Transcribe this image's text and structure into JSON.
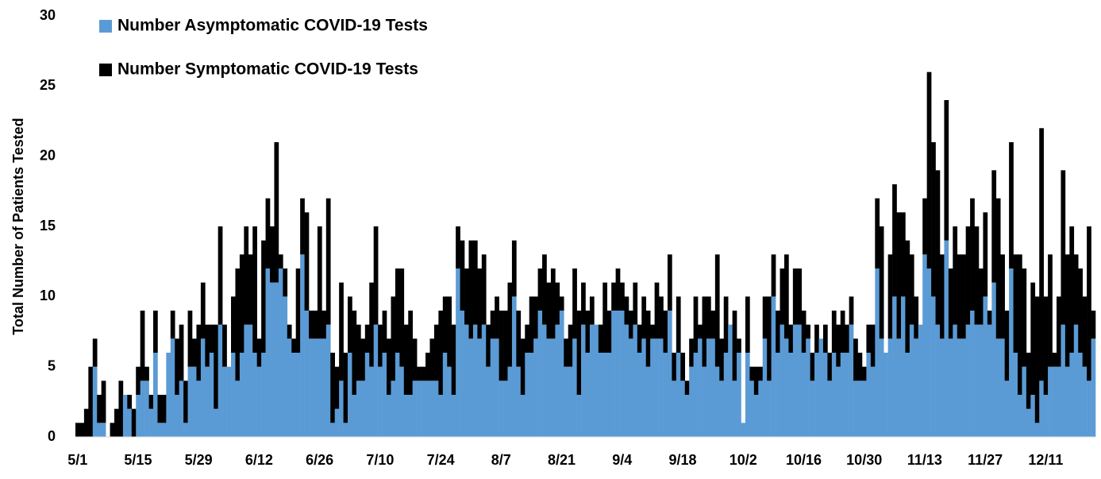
{
  "chart_data": {
    "type": "bar",
    "stacked": true,
    "y_label": "Total Number of Patients Tested",
    "categories": [
      "5/1",
      null,
      null,
      null,
      null,
      null,
      null,
      null,
      null,
      null,
      null,
      null,
      null,
      null,
      "5/15",
      null,
      null,
      null,
      null,
      null,
      null,
      null,
      null,
      null,
      null,
      null,
      null,
      null,
      "5/29",
      null,
      null,
      null,
      null,
      null,
      null,
      null,
      null,
      null,
      null,
      null,
      null,
      null,
      "6/12",
      null,
      null,
      null,
      null,
      null,
      null,
      null,
      null,
      null,
      null,
      null,
      null,
      null,
      "6/26",
      null,
      null,
      null,
      null,
      null,
      null,
      null,
      null,
      null,
      null,
      null,
      null,
      null,
      "7/10",
      null,
      null,
      null,
      null,
      null,
      null,
      null,
      null,
      null,
      null,
      null,
      null,
      null,
      "7/24",
      null,
      null,
      null,
      null,
      null,
      null,
      null,
      null,
      null,
      null,
      null,
      null,
      null,
      "8/7",
      null,
      null,
      null,
      null,
      null,
      null,
      null,
      null,
      null,
      null,
      null,
      null,
      null,
      "8/21",
      null,
      null,
      null,
      null,
      null,
      null,
      null,
      null,
      null,
      null,
      null,
      null,
      null,
      "9/4",
      null,
      null,
      null,
      null,
      null,
      null,
      null,
      null,
      null,
      null,
      null,
      null,
      null,
      "9/18",
      null,
      null,
      null,
      null,
      null,
      null,
      null,
      null,
      null,
      null,
      null,
      null,
      null,
      "10/2",
      null,
      null,
      null,
      null,
      null,
      null,
      null,
      null,
      null,
      null,
      null,
      null,
      null,
      "10/16",
      null,
      null,
      null,
      null,
      null,
      null,
      null,
      null,
      null,
      null,
      null,
      null,
      null,
      "10/30",
      null,
      null,
      null,
      null,
      null,
      null,
      null,
      null,
      null,
      null,
      null,
      null,
      null,
      "11/13",
      null,
      null,
      null,
      null,
      null,
      null,
      null,
      null,
      null,
      null,
      null,
      null,
      null,
      "11/27",
      null,
      null,
      null,
      null,
      null,
      null,
      null,
      null,
      null,
      null,
      null,
      null,
      null,
      "12/11",
      null,
      null,
      null,
      null,
      null,
      null,
      null,
      null,
      null,
      null,
      null
    ],
    "series": [
      {
        "name": "Number Asymptomatic COVID-19 Tests",
        "color": "#5b9bd5",
        "values": [
          0,
          0,
          0,
          0,
          5,
          1,
          1,
          0,
          0,
          0,
          0,
          3,
          2,
          0,
          3,
          4,
          4,
          2,
          6,
          1,
          1,
          6,
          7,
          3,
          4,
          1,
          5,
          5,
          4,
          7,
          5,
          6,
          2,
          8,
          5,
          5,
          6,
          4,
          6,
          8,
          8,
          6,
          5,
          6,
          12,
          11,
          11,
          12,
          10,
          7,
          6,
          6,
          13,
          9,
          7,
          7,
          7,
          7,
          8,
          1,
          2,
          4,
          1,
          6,
          3,
          4,
          4,
          6,
          5,
          8,
          5,
          6,
          3,
          4,
          6,
          5,
          3,
          3,
          4,
          4,
          4,
          4,
          4,
          4,
          3,
          6,
          5,
          3,
          12,
          9,
          8,
          7,
          8,
          7,
          8,
          5,
          7,
          7,
          4,
          4,
          5,
          10,
          5,
          3,
          6,
          6,
          7,
          9,
          8,
          7,
          7,
          8,
          9,
          5,
          5,
          7,
          3,
          8,
          6,
          8,
          8,
          6,
          6,
          6,
          9,
          9,
          9,
          8,
          7,
          8,
          6,
          7,
          5,
          7,
          7,
          7,
          6,
          9,
          4,
          6,
          4,
          3,
          5,
          6,
          7,
          5,
          7,
          7,
          5,
          4,
          6,
          8,
          4,
          6,
          1,
          6,
          4,
          3,
          4,
          7,
          4,
          10,
          6,
          8,
          7,
          6,
          8,
          8,
          6,
          7,
          4,
          6,
          7,
          6,
          4,
          6,
          5,
          6,
          6,
          8,
          4,
          4,
          4,
          6,
          5,
          12,
          7,
          6,
          7,
          10,
          7,
          10,
          6,
          8,
          7,
          8,
          13,
          12,
          10,
          8,
          7,
          14,
          7,
          8,
          7,
          7,
          8,
          9,
          8,
          8,
          10,
          8,
          11,
          7,
          7,
          4,
          12,
          6,
          3,
          5,
          2,
          3,
          1,
          4,
          3,
          5,
          5,
          5,
          8,
          5,
          6,
          8,
          6,
          5,
          4,
          7
        ]
      },
      {
        "name": "Number Symptomatic COVID-19 Tests",
        "color": "#000000",
        "values": [
          1,
          1,
          2,
          5,
          2,
          2,
          3,
          0,
          1,
          2,
          4,
          0,
          1,
          2,
          2,
          5,
          1,
          1,
          3,
          2,
          2,
          0,
          2,
          4,
          4,
          3,
          4,
          2,
          4,
          4,
          3,
          2,
          6,
          7,
          3,
          0,
          4,
          8,
          7,
          7,
          5,
          9,
          2,
          8,
          5,
          4,
          10,
          1,
          2,
          1,
          1,
          6,
          4,
          7,
          2,
          2,
          8,
          2,
          9,
          5,
          3,
          7,
          5,
          4,
          6,
          4,
          3,
          2,
          6,
          7,
          3,
          3,
          4,
          6,
          6,
          7,
          5,
          6,
          3,
          1,
          1,
          2,
          3,
          4,
          6,
          4,
          5,
          5,
          3,
          5,
          4,
          7,
          6,
          5,
          5,
          3,
          2,
          3,
          5,
          5,
          6,
          4,
          4,
          4,
          2,
          4,
          3,
          3,
          5,
          4,
          5,
          3,
          1,
          2,
          3,
          5,
          6,
          3,
          3,
          2,
          0,
          2,
          5,
          3,
          2,
          3,
          2,
          2,
          2,
          3,
          2,
          3,
          4,
          1,
          4,
          3,
          3,
          4,
          2,
          4,
          2,
          1,
          2,
          4,
          1,
          5,
          3,
          2,
          8,
          3,
          4,
          0,
          5,
          1,
          0,
          4,
          1,
          2,
          1,
          3,
          6,
          3,
          3,
          4,
          6,
          2,
          4,
          4,
          3,
          1,
          2,
          2,
          0,
          2,
          2,
          3,
          3,
          3,
          2,
          2,
          3,
          2,
          1,
          2,
          3,
          5,
          8,
          0,
          6,
          8,
          9,
          6,
          8,
          5,
          3,
          0,
          4,
          14,
          11,
          11,
          6,
          10,
          5,
          7,
          6,
          6,
          7,
          8,
          7,
          4,
          6,
          1,
          8,
          10,
          6,
          5,
          9,
          7,
          10,
          7,
          4,
          8,
          9,
          18,
          7,
          8,
          1,
          5,
          11,
          8,
          9,
          5,
          6,
          5,
          11,
          2
        ]
      }
    ],
    "ylim": [
      0,
      30
    ],
    "yticks": [
      0,
      5,
      10,
      15,
      20,
      25,
      30
    ],
    "grid": false,
    "legend": "top-left"
  }
}
